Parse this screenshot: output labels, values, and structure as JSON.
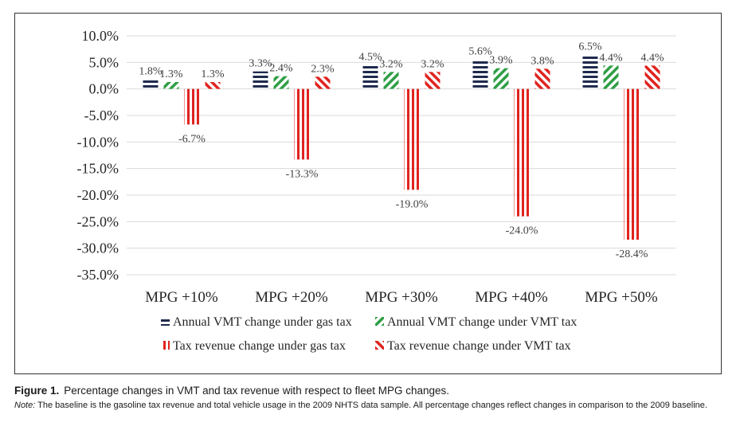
{
  "chart_data": {
    "type": "bar",
    "categories": [
      "MPG +10%",
      "MPG +20%",
      "MPG +30%",
      "MPG +40%",
      "MPG +50%"
    ],
    "series": [
      {
        "name": "Annual VMT change under gas tax",
        "values": [
          1.8,
          3.3,
          4.5,
          5.6,
          6.5
        ],
        "labels": [
          "1.8%",
          "3.3%",
          "4.5%",
          "5.6%",
          "6.5%"
        ],
        "color": "#1f2a4d",
        "pattern": "horizontal-stripes"
      },
      {
        "name": "Annual VMT change under VMT tax",
        "values": [
          1.3,
          2.4,
          3.2,
          3.9,
          4.4
        ],
        "labels": [
          "1.3%",
          "2.4%",
          "3.2%",
          "3.9%",
          "4.4%"
        ],
        "color": "#2e9e44",
        "pattern": "diagonal-stripes-up"
      },
      {
        "name": "Tax revenue change under gas tax",
        "values": [
          -6.7,
          -13.3,
          -19.0,
          -24.0,
          -28.4
        ],
        "labels": [
          "-6.7%",
          "-13.3%",
          "-19.0%",
          "-24.0%",
          "-28.4%"
        ],
        "color": "#e0231f",
        "pattern": "vertical-stripes"
      },
      {
        "name": "Tax revenue change under VMT tax",
        "values": [
          1.3,
          2.3,
          3.2,
          3.8,
          4.4
        ],
        "labels": [
          "1.3%",
          "2.3%",
          "3.2%",
          "3.8%",
          "4.4%"
        ],
        "color": "#e0231f",
        "pattern": "diagonal-stripes-down"
      }
    ],
    "ylim": [
      -35,
      10
    ],
    "yticks": [
      10,
      5,
      0,
      -5,
      -10,
      -15,
      -20,
      -25,
      -30,
      -35
    ],
    "ytick_labels": [
      "10.0%",
      "5.0%",
      "0.0%",
      "-5.0%",
      "-10.0%",
      "-15.0%",
      "-20.0%",
      "-25.0%",
      "-30.0%",
      "-35.0%"
    ],
    "grid": true,
    "legend_position": "bottom",
    "title": "",
    "xlabel": "",
    "ylabel": ""
  },
  "caption": {
    "label": "Figure 1.",
    "text": "Percentage changes in VMT and tax revenue with respect to fleet MPG changes.",
    "note_label": "Note:",
    "note_text": " The baseline is the gasoline tax revenue and total vehicle usage in the 2009 NHTS data sample. All percentage changes reflect changes in comparison to the 2009 baseline."
  }
}
